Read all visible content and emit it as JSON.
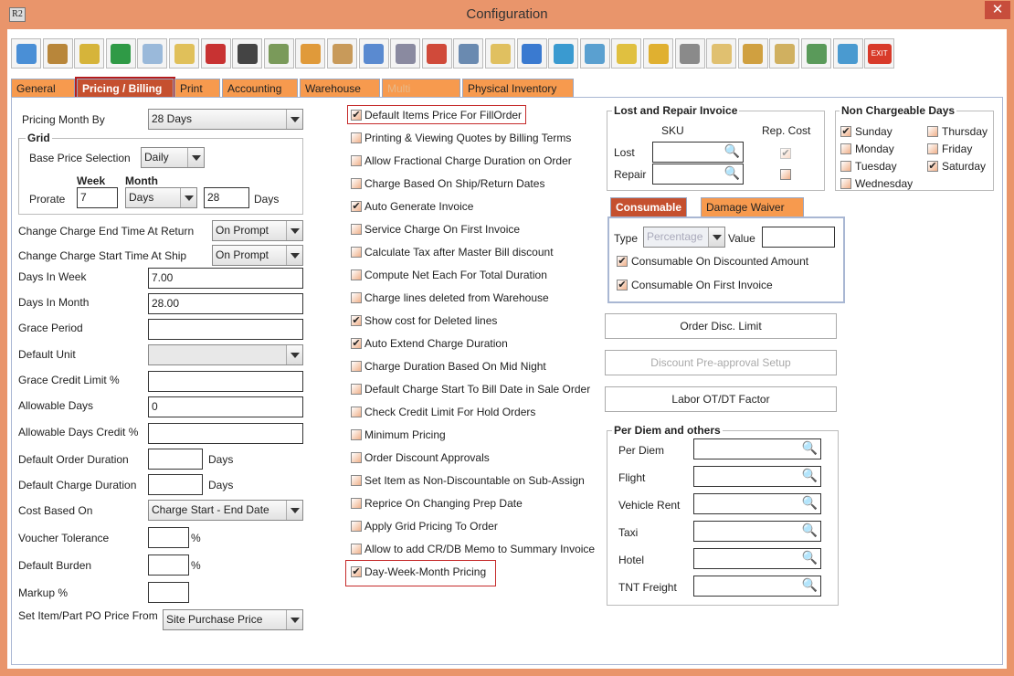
{
  "window": {
    "title": "Configuration",
    "app_icon": "R2",
    "close": "✕"
  },
  "toolbar": [
    {
      "icon": "save-icon",
      "color": "#4a8fd6"
    },
    {
      "icon": "ship-alert-icon",
      "color": "#b8863a"
    },
    {
      "icon": "coins-alert-icon",
      "color": "#d6b43a"
    },
    {
      "icon": "invoice-alert-icon",
      "color": "#2f9a46"
    },
    {
      "icon": "edit-note-icon",
      "color": "#9ab9da"
    },
    {
      "icon": "form-alert-icon",
      "color": "#e0c05a"
    },
    {
      "icon": "pay-alert-icon",
      "color": "#c83232"
    },
    {
      "icon": "grid-alert-icon",
      "color": "#444444"
    },
    {
      "icon": "ledger-alert-icon",
      "color": "#7a9a5a"
    },
    {
      "icon": "lock-import-icon",
      "color": "#e09a3a"
    },
    {
      "icon": "calendar-icon",
      "color": "#c89a5a"
    },
    {
      "icon": "triangle-ruler-icon",
      "color": "#5a8ad0"
    },
    {
      "icon": "gears-icon",
      "color": "#8a8aa0"
    },
    {
      "icon": "color-cubes-icon",
      "color": "#d04a3a"
    },
    {
      "icon": "price-gear-icon",
      "color": "#6a8ab0"
    },
    {
      "icon": "folder-clock-icon",
      "color": "#e0c060"
    },
    {
      "icon": "card-icon",
      "color": "#3a7ad0"
    },
    {
      "icon": "document-db-icon",
      "color": "#3a9ad0"
    },
    {
      "icon": "document-export-icon",
      "color": "#5aa0d0"
    },
    {
      "icon": "shield-gear-icon",
      "color": "#e0c040"
    },
    {
      "icon": "shield-user-icon",
      "color": "#e0b030"
    },
    {
      "icon": "wrench-gear-icon",
      "color": "#8a8a8a"
    },
    {
      "icon": "documents-icon",
      "color": "#e0c070"
    },
    {
      "icon": "user-edit-icon",
      "color": "#d0a040"
    },
    {
      "icon": "folder-gear-icon",
      "color": "#d0b060"
    },
    {
      "icon": "calculator-gear-icon",
      "color": "#5a9a5a"
    },
    {
      "icon": "transfer-icon",
      "color": "#4a9ad0"
    },
    {
      "icon": "exit-icon",
      "color": "#d83a2a",
      "text": "EXIT"
    }
  ],
  "tabs": [
    {
      "label": "General"
    },
    {
      "label": "Pricing / Billing",
      "active": true
    },
    {
      "label": "Print"
    },
    {
      "label": "Accounting"
    },
    {
      "label": "Warehouse"
    },
    {
      "label": "Multi Currency",
      "disabled": true
    },
    {
      "label": "Physical Inventory"
    }
  ],
  "left": {
    "pricing_month_by": {
      "label": "Pricing Month By",
      "value": "28 Days"
    },
    "grid": {
      "legend": "Grid",
      "base_price_label": "Base Price Selection",
      "base_price_value": "Daily",
      "week_header": "Week",
      "month_header": "Month",
      "prorate_label": "Prorate",
      "week_value": "7",
      "month_unit": "Days",
      "month_value": "28",
      "days_label": "Days"
    },
    "charge_end": {
      "label": "Change Charge End Time At Return",
      "value": "On Prompt"
    },
    "charge_start": {
      "label": "Change Charge Start Time At Ship",
      "value": "On Prompt"
    },
    "days_in_week": {
      "label": "Days In Week",
      "value": "7.00"
    },
    "days_in_month": {
      "label": "Days In Month",
      "value": "28.00"
    },
    "grace_period": {
      "label": "Grace Period",
      "value": ""
    },
    "default_unit": {
      "label": "Default Unit",
      "value": ""
    },
    "grace_credit": {
      "label": "Grace Credit Limit %",
      "value": ""
    },
    "allowable_days": {
      "label": "Allowable Days",
      "value": "0"
    },
    "allowable_credit": {
      "label": "Allowable Days Credit %",
      "value": ""
    },
    "order_duration": {
      "label": "Default Order Duration",
      "value": "",
      "unit": "Days"
    },
    "charge_duration": {
      "label": "Default Charge Duration",
      "value": "",
      "unit": "Days"
    },
    "cost_based": {
      "label": "Cost Based On",
      "value": "Charge Start - End Date"
    },
    "voucher": {
      "label": "Voucher Tolerance",
      "value": "",
      "unit": "%"
    },
    "burden": {
      "label": "Default Burden",
      "value": "",
      "unit": "%"
    },
    "markup": {
      "label": "Markup %",
      "value": ""
    },
    "po_price": {
      "label": "Set Item/Part PO Price From",
      "value": "Site Purchase Price"
    }
  },
  "options": [
    {
      "label": "Default Items Price For FillOrder",
      "checked": true
    },
    {
      "label": "Printing & Viewing Quotes by Billing Terms",
      "checked": false
    },
    {
      "label": "Allow Fractional Charge Duration on Order",
      "checked": false
    },
    {
      "label": "Charge Based On Ship/Return Dates",
      "checked": false
    },
    {
      "label": "Auto Generate Invoice",
      "checked": true
    },
    {
      "label": "Service Charge On First Invoice",
      "checked": false
    },
    {
      "label": "Calculate Tax after Master Bill discount",
      "checked": false
    },
    {
      "label": "Compute Net Each For Total Duration",
      "checked": false
    },
    {
      "label": "Charge lines deleted from Warehouse",
      "checked": false
    },
    {
      "label": "Show cost for Deleted lines",
      "checked": true
    },
    {
      "label": "Auto Extend Charge Duration",
      "checked": true
    },
    {
      "label": "Charge Duration Based On Mid Night",
      "checked": false
    },
    {
      "label": "Default Charge Start To Bill Date in Sale Order",
      "checked": false
    },
    {
      "label": "Check Credit Limit For Hold Orders",
      "checked": false
    },
    {
      "label": "Minimum Pricing",
      "checked": false
    },
    {
      "label": "Order Discount Approvals",
      "checked": false
    },
    {
      "label": "Set Item as Non-Discountable on Sub-Assign",
      "checked": false
    },
    {
      "label": "Reprice On Changing Prep Date",
      "checked": false
    },
    {
      "label": "Apply Grid Pricing To Order",
      "checked": false
    },
    {
      "label": "Allow to add CR/DB Memo to Summary Invoice",
      "checked": false
    },
    {
      "label": "Day-Week-Month Pricing",
      "checked": true
    }
  ],
  "lost_repair": {
    "legend": "Lost and Repair Invoice",
    "sku_header": "SKU",
    "rep_cost_header": "Rep. Cost",
    "lost_label": "Lost",
    "lost_value": "",
    "lost_rep_cost": true,
    "repair_label": "Repair",
    "repair_value": "",
    "repair_rep_cost": false
  },
  "non_chargeable": {
    "legend": "Non Chargeable Days",
    "days": [
      {
        "label": "Sunday",
        "checked": true
      },
      {
        "label": "Monday",
        "checked": false
      },
      {
        "label": "Tuesday",
        "checked": false
      },
      {
        "label": "Wednesday",
        "checked": false
      },
      {
        "label": "Thursday",
        "checked": false
      },
      {
        "label": "Friday",
        "checked": false
      },
      {
        "label": "Saturday",
        "checked": true
      }
    ]
  },
  "sub_tabs": [
    {
      "label": "Consumable",
      "active": true
    },
    {
      "label": "Damage Waiver"
    }
  ],
  "consumable": {
    "type_label": "Type",
    "type_value": "Percentage",
    "value_label": "Value",
    "value": "",
    "on_discounted": {
      "label": "Consumable On Discounted Amount",
      "checked": true
    },
    "on_first_invoice": {
      "label": "Consumable On First Invoice",
      "checked": true
    }
  },
  "buttons": {
    "order_disc": "Order Disc. Limit",
    "discount_preapproval": "Discount Pre-approval Setup",
    "labor": "Labor OT/DT Factor"
  },
  "per_diem": {
    "legend": "Per Diem and others",
    "fields": [
      {
        "label": "Per Diem",
        "value": ""
      },
      {
        "label": "Flight",
        "value": ""
      },
      {
        "label": "Vehicle Rent",
        "value": ""
      },
      {
        "label": "Taxi",
        "value": ""
      },
      {
        "label": "Hotel",
        "value": ""
      },
      {
        "label": "TNT Freight",
        "value": ""
      }
    ]
  }
}
